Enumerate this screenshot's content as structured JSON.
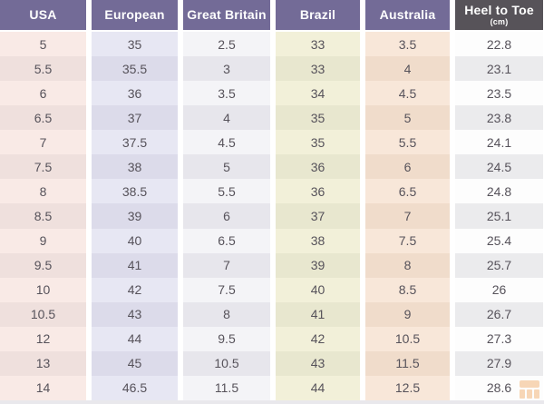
{
  "table": {
    "name": "shoe-size-conversion-chart",
    "columns": [
      {
        "label": "USA",
        "header_bg": "#736b97",
        "header_fg": "#ffffff",
        "row_light": "#f9eae6",
        "row_dark": "#efe0dd",
        "values": [
          "5",
          "5.5",
          "6",
          "6.5",
          "7",
          "7.5",
          "8",
          "8.5",
          "9",
          "9.5",
          "10",
          "10.5",
          "12",
          "13",
          "14"
        ]
      },
      {
        "label": "European",
        "header_bg": "#736b97",
        "header_fg": "#ffffff",
        "row_light": "#e7e7f3",
        "row_dark": "#dcdbea",
        "values": [
          "35",
          "35.5",
          "36",
          "37",
          "37.5",
          "38",
          "38.5",
          "39",
          "40",
          "41",
          "42",
          "43",
          "44",
          "45",
          "46.5"
        ]
      },
      {
        "label": "Great Britain",
        "header_bg": "#736b97",
        "header_fg": "#ffffff",
        "row_light": "#f4f4f7",
        "row_dark": "#e7e6ec",
        "values": [
          "2.5",
          "3",
          "3.5",
          "4",
          "4.5",
          "5",
          "5.5",
          "6",
          "6.5",
          "7",
          "7.5",
          "8",
          "9.5",
          "10.5",
          "11.5"
        ]
      },
      {
        "label": "Brazil",
        "header_bg": "#736b97",
        "header_fg": "#ffffff",
        "row_light": "#f2f0d9",
        "row_dark": "#e8e7cf",
        "values": [
          "33",
          "33",
          "34",
          "35",
          "35",
          "36",
          "36",
          "37",
          "38",
          "39",
          "40",
          "41",
          "42",
          "43",
          "44"
        ]
      },
      {
        "label": "Australia",
        "header_bg": "#736b97",
        "header_fg": "#ffffff",
        "row_light": "#f8e7d9",
        "row_dark": "#f0dccb",
        "values": [
          "3.5",
          "4",
          "4.5",
          "5",
          "5.5",
          "6",
          "6.5",
          "7",
          "7.5",
          "8",
          "8.5",
          "9",
          "10.5",
          "11.5",
          "12.5"
        ]
      },
      {
        "label": "Heel to Toe",
        "sublabel": "(cm)",
        "header_bg": "#575359",
        "header_fg": "#ffffff",
        "row_light": "#fdfdfd",
        "row_dark": "#ebebed",
        "values": [
          "22.8",
          "23.1",
          "23.5",
          "23.8",
          "24.1",
          "24.5",
          "24.8",
          "25.1",
          "25.4",
          "25.7",
          "26",
          "26.7",
          "27.3",
          "27.9",
          "28.6"
        ]
      }
    ]
  },
  "colors": {
    "header_purple": "#736b97",
    "header_dark": "#575359",
    "cell_text": "#56525a",
    "gutter": "#ffffff",
    "page_background": "#e9e8ec",
    "watermark_orange": "#ee9944"
  },
  "watermark": {
    "icon": "grid-logo-icon",
    "color": "#ee9944"
  }
}
